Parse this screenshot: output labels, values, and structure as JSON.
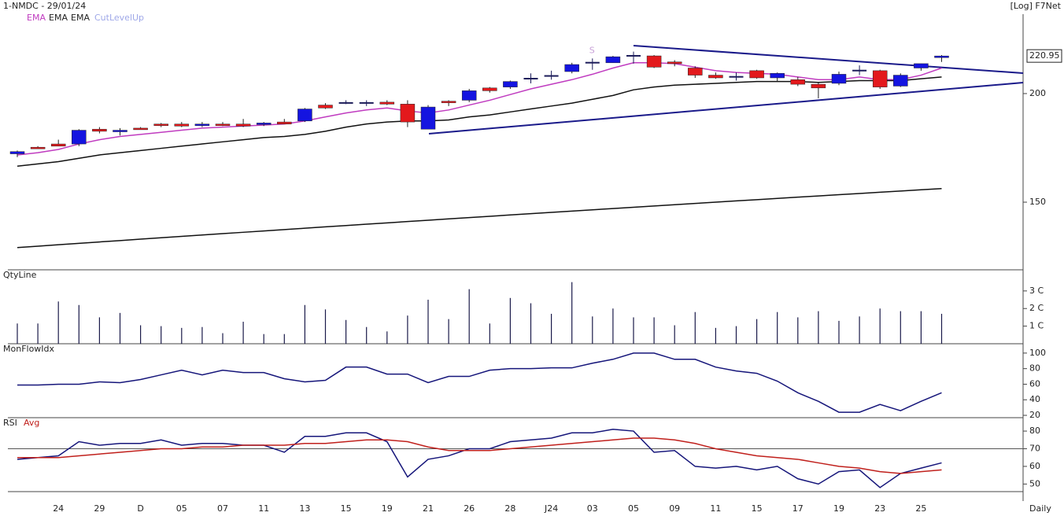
{
  "chart_data": [
    {
      "type": "candlestick",
      "title": "1-NMDC - 29/01/24",
      "subtitle": "[Log] F7Net",
      "log_scale": true,
      "ylim": [
        125.4,
        245.8
      ],
      "yticks": [
        150,
        200
      ],
      "up_color": "#1414e0",
      "down_color": "#e3191c",
      "cross_color": "#1c1c5a",
      "open": [
        170.5,
        173.5,
        175,
        175,
        182,
        181,
        182.5,
        184.5,
        184.5,
        184,
        184.5,
        184.5,
        184.5,
        185.5,
        186,
        194,
        195.5,
        195.5,
        195.5,
        194.5,
        182,
        196,
        196.5,
        203,
        203.5,
        208.5,
        210,
        212,
        217.5,
        217,
        221.5,
        221,
        217.5,
        214,
        210,
        209.5,
        212.5,
        208.5,
        207.5,
        205,
        205.5,
        213,
        212.5,
        204,
        214,
        220
      ],
      "high": [
        172,
        174,
        177,
        182,
        183,
        182.5,
        183,
        185,
        185.5,
        185.5,
        185.5,
        187,
        185.5,
        187,
        192.5,
        195,
        196.5,
        196.5,
        196.5,
        196.5,
        194,
        196.5,
        202.5,
        203.5,
        207,
        211,
        212.5,
        217,
        219.5,
        221,
        223.5,
        221.5,
        218.5,
        215,
        211.5,
        211.5,
        213,
        211.5,
        209,
        206,
        212,
        215.5,
        213,
        211,
        216.5,
        221.5
      ],
      "low": [
        169,
        173,
        174,
        174,
        180,
        179,
        182,
        183,
        183,
        183,
        183.5,
        183,
        183.5,
        184.5,
        185.5,
        192,
        194.5,
        193.5,
        194,
        183,
        182,
        193.5,
        195.5,
        200.5,
        202.5,
        205.5,
        207.5,
        211,
        213,
        217,
        216.5,
        214,
        215,
        208.5,
        208,
        207,
        208,
        206.5,
        204,
        197.5,
        204.5,
        210,
        202.5,
        203.5,
        212.5,
        217.5
      ],
      "close": [
        171.5,
        173,
        174,
        181.5,
        181,
        181.5,
        182,
        184,
        183.5,
        184.5,
        184.2,
        183.5,
        185,
        184.5,
        192,
        192.5,
        195.5,
        195.5,
        194.5,
        185.5,
        193,
        195.5,
        201.5,
        201.5,
        206.5,
        208.5,
        210,
        216,
        217.5,
        220.5,
        221.5,
        214.5,
        216.5,
        210,
        208.5,
        209.5,
        208.5,
        211,
        205,
        203,
        210.5,
        213,
        203.5,
        210,
        216.5,
        220.95
      ],
      "series": [
        {
          "name": "EMA",
          "color": "#c03cc0",
          "values": [
            170,
            171,
            172.5,
            175,
            177,
            178.5,
            179.5,
            180.5,
            181.5,
            182.5,
            183,
            183.5,
            184,
            184.5,
            186,
            188,
            190,
            191.5,
            192.5,
            191,
            190,
            191.5,
            194,
            196.5,
            199.5,
            202.5,
            205,
            207.5,
            210.5,
            214,
            217,
            217,
            216.5,
            214.5,
            212.5,
            211.5,
            211,
            210.5,
            209,
            207.5,
            207.5,
            209,
            207.5,
            207.5,
            210,
            214
          ]
        },
        {
          "name": "EMA",
          "color": "#111111",
          "values": [
            165,
            166,
            167,
            168.5,
            170,
            171,
            172,
            173,
            174,
            175,
            176,
            177,
            178,
            178.5,
            179.5,
            181,
            183,
            184.5,
            185.5,
            186,
            186,
            186.5,
            188,
            189,
            190.5,
            192,
            193.5,
            195,
            197,
            199,
            202,
            203.5,
            204.5,
            205,
            205.5,
            206,
            206.5,
            206.5,
            206.5,
            206,
            206.5,
            207,
            207,
            207,
            208,
            209
          ]
        },
        {
          "name": "EMA",
          "color": "#111111",
          "values": [
            133,
            133.5,
            134,
            134.5,
            135,
            135.5,
            136,
            136.5,
            137,
            137.5,
            138,
            138.5,
            139,
            139.5,
            140,
            140.5,
            141,
            141.5,
            142,
            142.5,
            143,
            143.5,
            144,
            144.5,
            145,
            145.5,
            146,
            146.5,
            147,
            147.5,
            148,
            148.5,
            149,
            149.5,
            150,
            150.5,
            151,
            151.5,
            152,
            152.5,
            153,
            153.5,
            154,
            154.5,
            155,
            155.5
          ]
        },
        {
          "name": "CutLevelUp",
          "color": "#9fa8e8"
        }
      ],
      "annotation": "S"
    },
    {
      "type": "bar",
      "title": "QtyLine",
      "color": "#1a1a4a",
      "ylim": [
        0,
        4.2
      ],
      "yticks": [
        {
          "value": 1,
          "label": "1 C"
        },
        {
          "value": 2,
          "label": "2 C"
        },
        {
          "value": 3,
          "label": "3 C"
        }
      ],
      "values": [
        1.15,
        1.15,
        2.4,
        2.2,
        1.5,
        1.75,
        1.05,
        1.0,
        0.9,
        0.95,
        0.6,
        1.25,
        0.55,
        0.55,
        2.2,
        1.95,
        1.35,
        0.95,
        0.7,
        1.6,
        2.5,
        1.4,
        3.1,
        1.15,
        2.6,
        2.3,
        1.7,
        3.5,
        1.55,
        2.0,
        1.5,
        1.5,
        1.05,
        1.8,
        0.9,
        1.0,
        1.4,
        1.8,
        1.5,
        1.85,
        1.3,
        1.55,
        2.0,
        1.85,
        1.85,
        1.7
      ]
    },
    {
      "type": "line",
      "ylim": [
        17,
        112
      ],
      "yticks": [
        20,
        40,
        60,
        80,
        100
      ],
      "series": [
        {
          "name": "MonFlowIdx",
          "color": "#15157a",
          "values": [
            59,
            59,
            60,
            60,
            63,
            62,
            66,
            72,
            78,
            72,
            78,
            75,
            75,
            67,
            63,
            65,
            82,
            82,
            73,
            73,
            62,
            70,
            70,
            78,
            80,
            80,
            81,
            81,
            87,
            92,
            100,
            100,
            92,
            92,
            82,
            77,
            74,
            64,
            49,
            38,
            24,
            24,
            34,
            26,
            38,
            49
          ]
        }
      ]
    },
    {
      "type": "line",
      "ylim": [
        45.7,
        87.6
      ],
      "yticks": [
        50,
        60,
        70,
        80
      ],
      "reference_line": 70,
      "series": [
        {
          "name": "RSI",
          "color": "#15157a",
          "values": [
            64,
            65,
            66,
            74,
            72,
            73,
            73,
            75,
            72,
            73,
            73,
            72,
            72,
            68,
            77,
            77,
            79,
            79,
            74,
            54,
            64,
            66,
            70,
            70,
            74,
            75,
            76,
            79,
            79,
            81,
            80,
            68,
            69,
            60,
            59,
            60,
            58,
            60,
            53,
            50,
            57,
            58,
            48,
            56,
            59,
            62
          ]
        },
        {
          "name": "Avg",
          "color": "#c0201c",
          "values": [
            65,
            65,
            65,
            66,
            67,
            68,
            69,
            70,
            70,
            71,
            71,
            72,
            72,
            72,
            73,
            73,
            74,
            75,
            75,
            74,
            71,
            69,
            69,
            69,
            70,
            71,
            72,
            73,
            74,
            75,
            76,
            76,
            75,
            73,
            70,
            68,
            66,
            65,
            64,
            62,
            60,
            59,
            57,
            56,
            57,
            58
          ]
        }
      ],
      "categories": [
        null,
        null,
        "24",
        null,
        "29",
        null,
        "D",
        null,
        "05",
        null,
        "07",
        null,
        "11",
        null,
        "13",
        null,
        "15",
        null,
        "19",
        null,
        "21",
        null,
        "26",
        null,
        "28",
        null,
        "J24",
        null,
        "03",
        null,
        "05",
        null,
        "09",
        null,
        "11",
        null,
        "15",
        null,
        "17",
        null,
        "19",
        null,
        "23",
        null,
        "25",
        null
      ],
      "x_label": "Daily"
    }
  ]
}
